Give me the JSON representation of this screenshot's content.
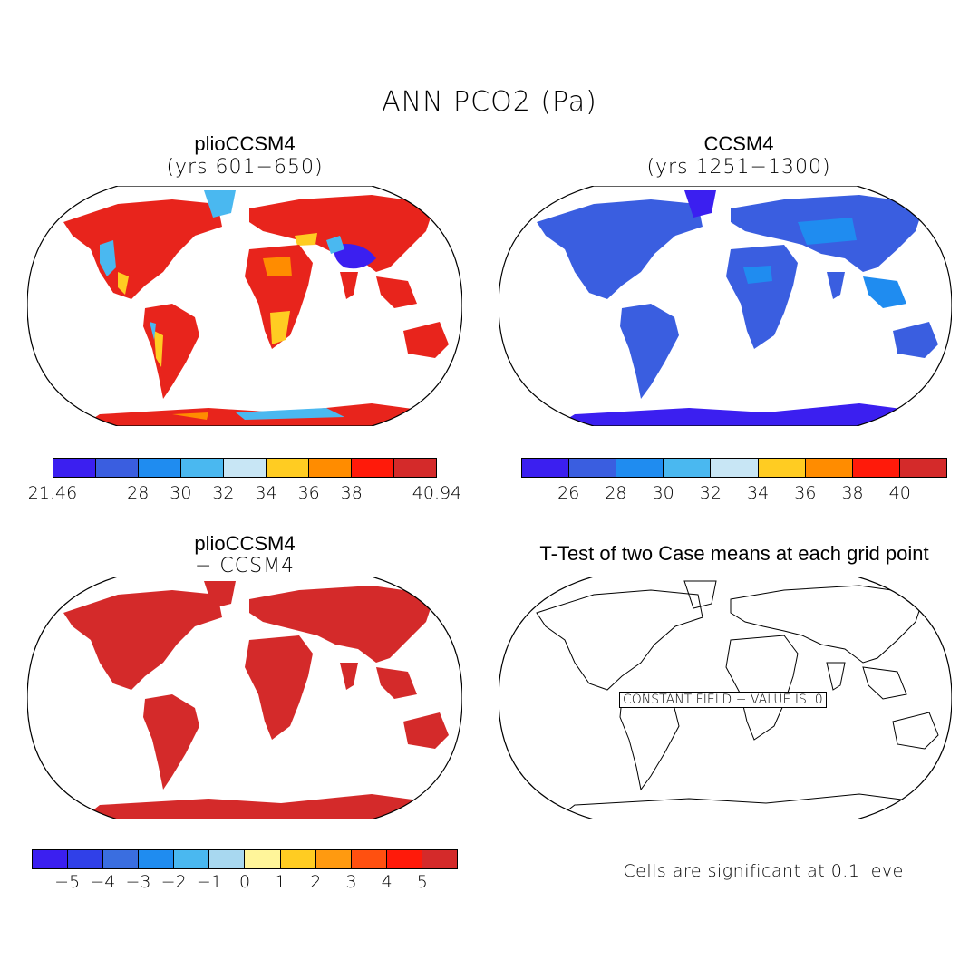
{
  "main_title": "ANN PCO2 (Pa)",
  "panels": {
    "top_left": {
      "title": "plioCCSM4",
      "subtitle": "(yrs 601−650)"
    },
    "top_right": {
      "title": "CCSM4",
      "subtitle": "(yrs 1251−1300)"
    },
    "bottom_left": {
      "title": "plioCCSM4",
      "subtitle": "− CCSM4"
    },
    "bottom_right": {
      "title": "T-Test of two Case means at each grid point",
      "constant_field_label": "CONSTANT FIELD − VALUE IS .0",
      "note": "Cells are significant at 0.1 level"
    }
  },
  "colorbars": {
    "top_left": {
      "colors": [
        "#3b1ff0",
        "#3a5ee0",
        "#1f8cf0",
        "#4ab8f0",
        "#c8e6f5",
        "#ffcc22",
        "#ff8c00",
        "#ff1a0a",
        "#d42a2a"
      ],
      "tick_labels": [
        "21.46",
        "28",
        "30",
        "32",
        "34",
        "36",
        "38",
        "40.94"
      ]
    },
    "top_right": {
      "colors": [
        "#3b1ff0",
        "#3a5ee0",
        "#1f8cf0",
        "#4ab8f0",
        "#c8e6f5",
        "#ffcc22",
        "#ff8c00",
        "#ff1a0a",
        "#d42a2a"
      ],
      "tick_labels": [
        "26",
        "28",
        "30",
        "32",
        "34",
        "36",
        "38",
        "40"
      ]
    },
    "bottom_left": {
      "colors": [
        "#3b1ff0",
        "#3040e8",
        "#3a6ee0",
        "#1f8cf0",
        "#4ab8f0",
        "#a8d8f0",
        "#fff59a",
        "#ffcc22",
        "#ff9a10",
        "#ff5010",
        "#ff1a0a",
        "#d42a2a"
      ],
      "tick_labels": [
        "−5",
        "−4",
        "−3",
        "−2",
        "−1",
        "0",
        "1",
        "2",
        "3",
        "4",
        "5"
      ]
    }
  },
  "map_colors": {
    "warm_land": "#e8241c",
    "warm_accent": "#ff8c00",
    "warm_light": "#ffcc22",
    "cool_spot": "#4ab8f0",
    "deep_blue": "#3b1ff0",
    "ccsm4_land": "#3a5ee0",
    "ccsm4_light": "#1f8cf0",
    "diff_land": "#d42a2a"
  }
}
